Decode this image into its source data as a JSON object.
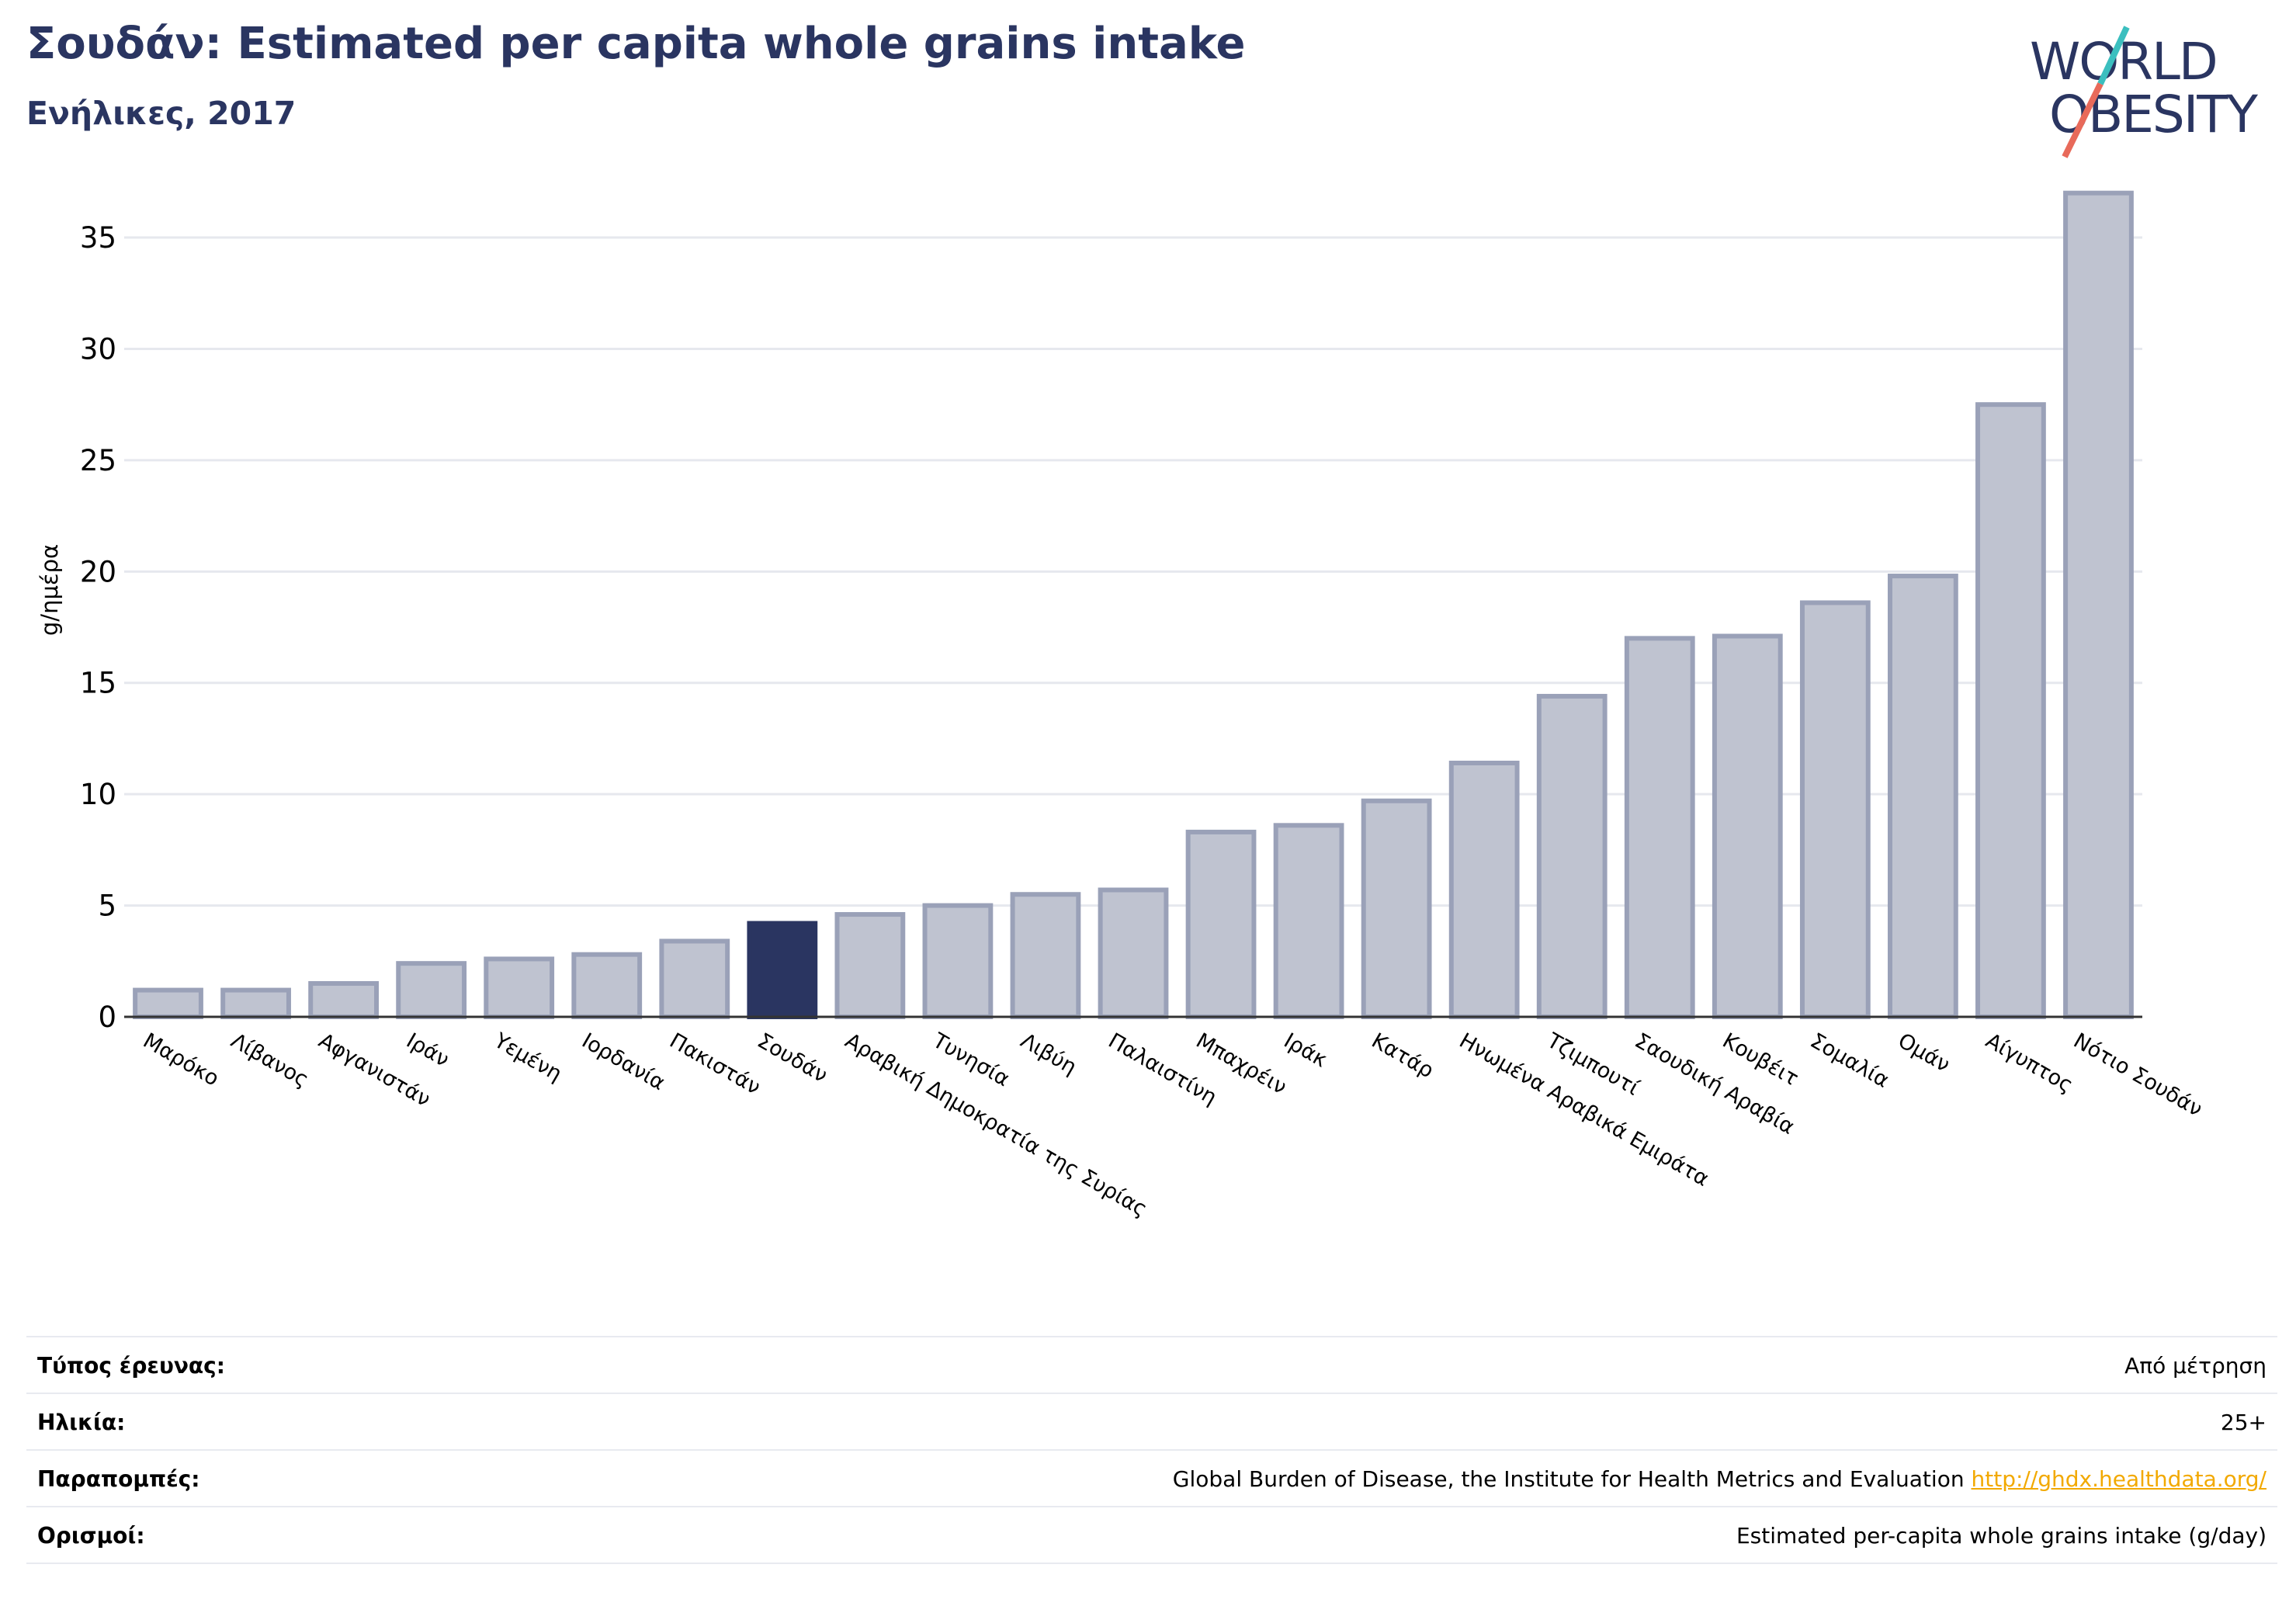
{
  "header": {
    "title": "Σουδάν: Estimated per capita whole grains intake",
    "subtitle": "Ενήλικες, 2017"
  },
  "logo": {
    "line1": "WORLD",
    "line2": "OBESITY",
    "text_color": "#2a3561",
    "slash_teal": "#3bbfbf",
    "slash_coral": "#e86a5a"
  },
  "colors": {
    "highlight": "#2a3561",
    "bar_fill": "#bfc3d0",
    "bar_stroke": "#9aa1b8",
    "grid": "#e6e8ee",
    "axis": "#333333"
  },
  "chart_data": {
    "type": "bar",
    "ylabel": "g/ημέρα",
    "ylim": [
      0,
      38
    ],
    "yticks": [
      0,
      5,
      10,
      15,
      20,
      25,
      30,
      35
    ],
    "grid": true,
    "highlight_category": "Σουδάν",
    "categories": [
      "Μαρόκο",
      "Λίβανος",
      "Αφγανιστάν",
      "Ιράν",
      "Υεμένη",
      "Ιορδανία",
      "Πακιστάν",
      "Σουδάν",
      "Αραβική Δημοκρατία της Συρίας",
      "Τυνησία",
      "Λιβύη",
      "Παλαιστίνη",
      "Μπαχρέιν",
      "Ιράκ",
      "Κατάρ",
      "Ηνωμένα Αραβικά Εμιράτα",
      "Τζιμπουτί",
      "Σαουδική Αραβία",
      "Κουβέιτ",
      "Σομαλία",
      "Ομάν",
      "Αίγυπτος",
      "Νότιο Σουδάν"
    ],
    "values": [
      1.2,
      1.2,
      1.5,
      2.4,
      2.6,
      2.8,
      3.4,
      4.2,
      4.6,
      5.0,
      5.5,
      5.7,
      8.3,
      8.6,
      9.7,
      11.4,
      14.4,
      17.0,
      17.1,
      18.6,
      19.8,
      27.5,
      37.0
    ]
  },
  "meta": {
    "rows": [
      {
        "label": "Τύπος έρευνας:",
        "value": "Από μέτρηση"
      },
      {
        "label": "Ηλικία:",
        "value": "25+"
      },
      {
        "label": "Παραπομπές:",
        "value": "Global Burden of Disease, the Institute for Health Metrics and Evaluation",
        "link": "http://ghdx.healthdata.org/"
      },
      {
        "label": "Ορισμοί:",
        "value": "Estimated per-capita whole grains intake (g/day)"
      }
    ]
  }
}
